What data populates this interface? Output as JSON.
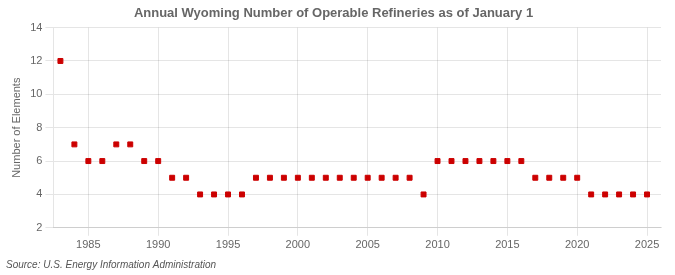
{
  "chart_data": {
    "type": "scatter",
    "title": "Annual Wyoming Number of Operable Refineries as of January 1",
    "ylabel": "Number of Elements",
    "annotation": "Source: U.S. Energy Information Administration",
    "x": [
      1983,
      1984,
      1985,
      1986,
      1987,
      1988,
      1989,
      1990,
      1991,
      1992,
      1993,
      1994,
      1995,
      1996,
      1997,
      1998,
      1999,
      2000,
      2001,
      2002,
      2003,
      2004,
      2005,
      2006,
      2007,
      2008,
      2009,
      2010,
      2011,
      2012,
      2013,
      2014,
      2015,
      2016,
      2017,
      2018,
      2019,
      2020,
      2021,
      2022,
      2023,
      2024,
      2025
    ],
    "values": [
      12,
      7,
      6,
      6,
      7,
      7,
      6,
      6,
      5,
      5,
      4,
      4,
      4,
      4,
      5,
      5,
      5,
      5,
      5,
      5,
      5,
      5,
      5,
      5,
      5,
      5,
      4,
      6,
      6,
      6,
      6,
      6,
      6,
      6,
      5,
      5,
      5,
      5,
      4,
      4,
      4,
      4,
      4
    ],
    "color": "#cc0000",
    "marker": "square",
    "xlim": [
      1982.5,
      2026
    ],
    "xticks": [
      1985,
      1990,
      1995,
      2000,
      2005,
      2010,
      2015,
      2020,
      2025
    ],
    "ylim": [
      2,
      14
    ],
    "yticks": [
      2,
      4,
      6,
      8,
      10,
      12,
      14
    ],
    "grid": true
  }
}
